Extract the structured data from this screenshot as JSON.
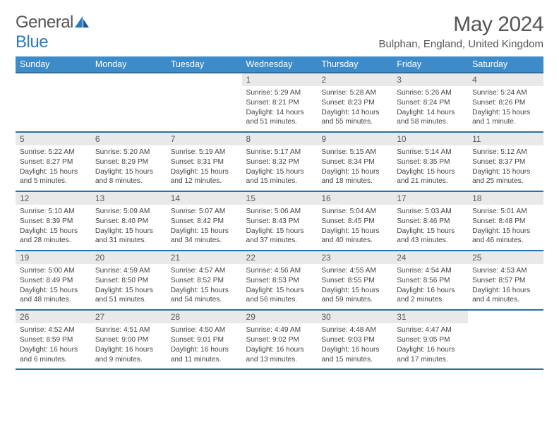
{
  "logo": {
    "text1": "General",
    "text2": "Blue"
  },
  "title": "May 2024",
  "location": "Bulphan, England, United Kingdom",
  "colors": {
    "header_bg": "#3d8bc9",
    "header_border": "#2b6fa3",
    "daynum_bg": "#e9e9e9",
    "text": "#444",
    "logo_blue": "#2b7bbf"
  },
  "weekdays": [
    "Sunday",
    "Monday",
    "Tuesday",
    "Wednesday",
    "Thursday",
    "Friday",
    "Saturday"
  ],
  "weeks": [
    {
      "days": [
        null,
        null,
        null,
        {
          "n": "1",
          "sr": "Sunrise: 5:29 AM",
          "ss": "Sunset: 8:21 PM",
          "dl": "Daylight: 14 hours and 51 minutes."
        },
        {
          "n": "2",
          "sr": "Sunrise: 5:28 AM",
          "ss": "Sunset: 8:23 PM",
          "dl": "Daylight: 14 hours and 55 minutes."
        },
        {
          "n": "3",
          "sr": "Sunrise: 5:26 AM",
          "ss": "Sunset: 8:24 PM",
          "dl": "Daylight: 14 hours and 58 minutes."
        },
        {
          "n": "4",
          "sr": "Sunrise: 5:24 AM",
          "ss": "Sunset: 8:26 PM",
          "dl": "Daylight: 15 hours and 1 minute."
        }
      ]
    },
    {
      "days": [
        {
          "n": "5",
          "sr": "Sunrise: 5:22 AM",
          "ss": "Sunset: 8:27 PM",
          "dl": "Daylight: 15 hours and 5 minutes."
        },
        {
          "n": "6",
          "sr": "Sunrise: 5:20 AM",
          "ss": "Sunset: 8:29 PM",
          "dl": "Daylight: 15 hours and 8 minutes."
        },
        {
          "n": "7",
          "sr": "Sunrise: 5:19 AM",
          "ss": "Sunset: 8:31 PM",
          "dl": "Daylight: 15 hours and 12 minutes."
        },
        {
          "n": "8",
          "sr": "Sunrise: 5:17 AM",
          "ss": "Sunset: 8:32 PM",
          "dl": "Daylight: 15 hours and 15 minutes."
        },
        {
          "n": "9",
          "sr": "Sunrise: 5:15 AM",
          "ss": "Sunset: 8:34 PM",
          "dl": "Daylight: 15 hours and 18 minutes."
        },
        {
          "n": "10",
          "sr": "Sunrise: 5:14 AM",
          "ss": "Sunset: 8:35 PM",
          "dl": "Daylight: 15 hours and 21 minutes."
        },
        {
          "n": "11",
          "sr": "Sunrise: 5:12 AM",
          "ss": "Sunset: 8:37 PM",
          "dl": "Daylight: 15 hours and 25 minutes."
        }
      ]
    },
    {
      "days": [
        {
          "n": "12",
          "sr": "Sunrise: 5:10 AM",
          "ss": "Sunset: 8:39 PM",
          "dl": "Daylight: 15 hours and 28 minutes."
        },
        {
          "n": "13",
          "sr": "Sunrise: 5:09 AM",
          "ss": "Sunset: 8:40 PM",
          "dl": "Daylight: 15 hours and 31 minutes."
        },
        {
          "n": "14",
          "sr": "Sunrise: 5:07 AM",
          "ss": "Sunset: 8:42 PM",
          "dl": "Daylight: 15 hours and 34 minutes."
        },
        {
          "n": "15",
          "sr": "Sunrise: 5:06 AM",
          "ss": "Sunset: 8:43 PM",
          "dl": "Daylight: 15 hours and 37 minutes."
        },
        {
          "n": "16",
          "sr": "Sunrise: 5:04 AM",
          "ss": "Sunset: 8:45 PM",
          "dl": "Daylight: 15 hours and 40 minutes."
        },
        {
          "n": "17",
          "sr": "Sunrise: 5:03 AM",
          "ss": "Sunset: 8:46 PM",
          "dl": "Daylight: 15 hours and 43 minutes."
        },
        {
          "n": "18",
          "sr": "Sunrise: 5:01 AM",
          "ss": "Sunset: 8:48 PM",
          "dl": "Daylight: 15 hours and 46 minutes."
        }
      ]
    },
    {
      "days": [
        {
          "n": "19",
          "sr": "Sunrise: 5:00 AM",
          "ss": "Sunset: 8:49 PM",
          "dl": "Daylight: 15 hours and 48 minutes."
        },
        {
          "n": "20",
          "sr": "Sunrise: 4:59 AM",
          "ss": "Sunset: 8:50 PM",
          "dl": "Daylight: 15 hours and 51 minutes."
        },
        {
          "n": "21",
          "sr": "Sunrise: 4:57 AM",
          "ss": "Sunset: 8:52 PM",
          "dl": "Daylight: 15 hours and 54 minutes."
        },
        {
          "n": "22",
          "sr": "Sunrise: 4:56 AM",
          "ss": "Sunset: 8:53 PM",
          "dl": "Daylight: 15 hours and 56 minutes."
        },
        {
          "n": "23",
          "sr": "Sunrise: 4:55 AM",
          "ss": "Sunset: 8:55 PM",
          "dl": "Daylight: 15 hours and 59 minutes."
        },
        {
          "n": "24",
          "sr": "Sunrise: 4:54 AM",
          "ss": "Sunset: 8:56 PM",
          "dl": "Daylight: 16 hours and 2 minutes."
        },
        {
          "n": "25",
          "sr": "Sunrise: 4:53 AM",
          "ss": "Sunset: 8:57 PM",
          "dl": "Daylight: 16 hours and 4 minutes."
        }
      ]
    },
    {
      "days": [
        {
          "n": "26",
          "sr": "Sunrise: 4:52 AM",
          "ss": "Sunset: 8:59 PM",
          "dl": "Daylight: 16 hours and 6 minutes."
        },
        {
          "n": "27",
          "sr": "Sunrise: 4:51 AM",
          "ss": "Sunset: 9:00 PM",
          "dl": "Daylight: 16 hours and 9 minutes."
        },
        {
          "n": "28",
          "sr": "Sunrise: 4:50 AM",
          "ss": "Sunset: 9:01 PM",
          "dl": "Daylight: 16 hours and 11 minutes."
        },
        {
          "n": "29",
          "sr": "Sunrise: 4:49 AM",
          "ss": "Sunset: 9:02 PM",
          "dl": "Daylight: 16 hours and 13 minutes."
        },
        {
          "n": "30",
          "sr": "Sunrise: 4:48 AM",
          "ss": "Sunset: 9:03 PM",
          "dl": "Daylight: 16 hours and 15 minutes."
        },
        {
          "n": "31",
          "sr": "Sunrise: 4:47 AM",
          "ss": "Sunset: 9:05 PM",
          "dl": "Daylight: 16 hours and 17 minutes."
        },
        null
      ]
    }
  ]
}
